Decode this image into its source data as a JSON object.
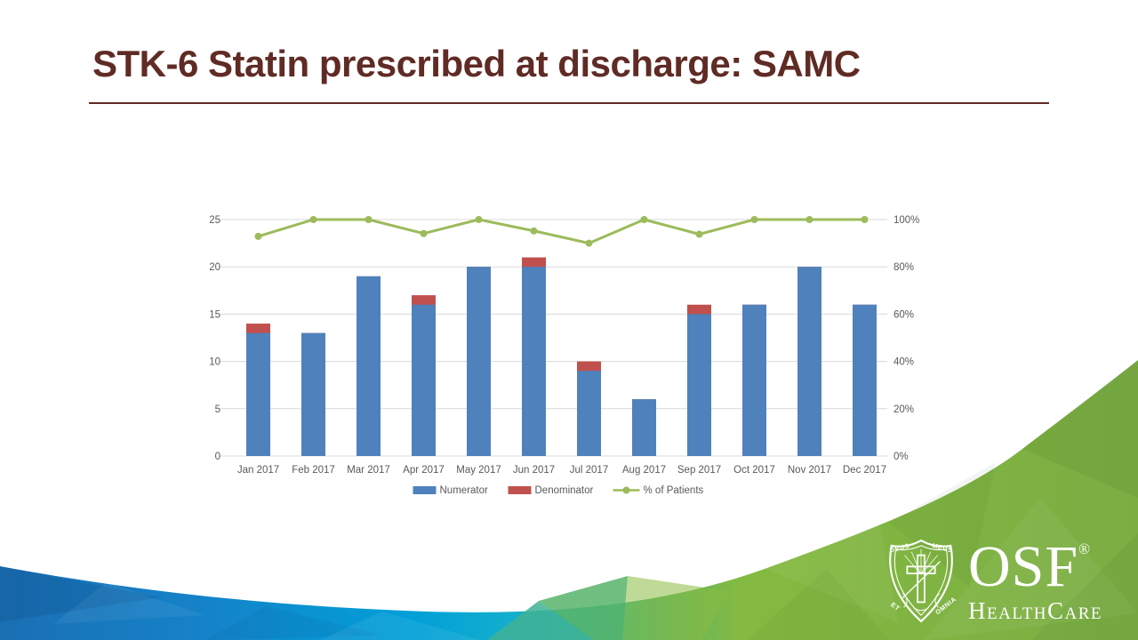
{
  "slide": {
    "title": "STK-6 Statin prescribed at discharge: SAMC",
    "accent_color": "#5f2b24"
  },
  "chart_data": {
    "type": "bar",
    "subtype": "combo-bar-line",
    "title": "",
    "xlabel": "",
    "ylabel": "",
    "categories": [
      "Jan 2017",
      "Feb 2017",
      "Mar 2017",
      "Apr 2017",
      "May 2017",
      "Jun 2017",
      "Jul 2017",
      "Aug 2017",
      "Sep 2017",
      "Oct 2017",
      "Nov 2017",
      "Dec 2017"
    ],
    "series": [
      {
        "name": "Numerator",
        "type": "bar",
        "color": "#4f81bd",
        "axis": "left",
        "values": [
          13,
          13,
          19,
          16,
          20,
          20,
          9,
          6,
          15,
          16,
          20,
          16
        ]
      },
      {
        "name": "Denominator",
        "type": "bar",
        "color": "#c0504d",
        "axis": "left",
        "values": [
          14,
          13,
          19,
          17,
          20,
          21,
          10,
          6,
          16,
          16,
          20,
          16
        ]
      },
      {
        "name": "% of Patients",
        "type": "line",
        "color": "#9cbb5b",
        "axis": "right",
        "values": [
          92.9,
          100,
          100,
          94.1,
          100,
          95.2,
          90,
          100,
          93.8,
          100,
          100,
          100
        ]
      }
    ],
    "left_axis": {
      "min": 0,
      "max": 25,
      "ticks": [
        0,
        5,
        10,
        15,
        20,
        25
      ]
    },
    "right_axis": {
      "min": 0,
      "max": 100,
      "tick_labels": [
        "0%",
        "20%",
        "40%",
        "60%",
        "80%",
        "100%"
      ]
    },
    "grid": true,
    "gridline_color": "#d9d9d9",
    "legend_position": "bottom"
  },
  "logo": {
    "org": "OSF",
    "registered": "®",
    "name": "HealthCare",
    "motto_top_left": "DEUS",
    "motto_top_right": "MEUS",
    "motto_bottom_left": "ET",
    "motto_bottom_right": "OMNIA"
  },
  "decoration": {
    "blue": "#1b6fb3",
    "cyan": "#00a0d8",
    "teal": "#2eb7a5",
    "green": "#7bad43"
  }
}
